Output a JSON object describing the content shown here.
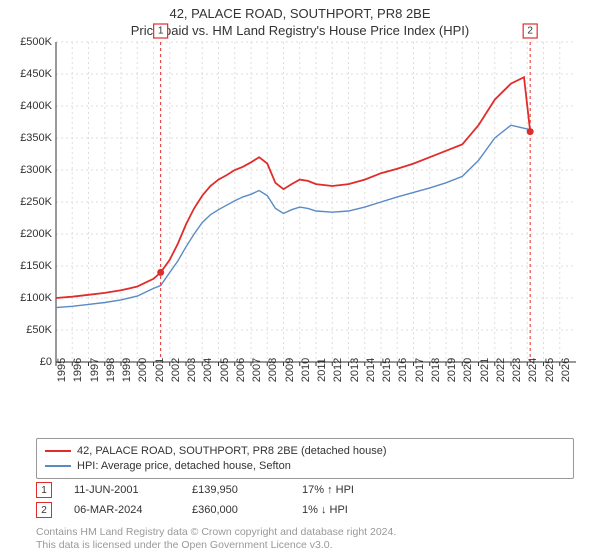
{
  "title_line1": "42, PALACE ROAD, SOUTHPORT, PR8 2BE",
  "title_line2": "Price paid vs. HM Land Registry's House Price Index (HPI)",
  "chart": {
    "type": "line",
    "background_color": "#ffffff",
    "grid_color": "#dddddd",
    "axis_color": "#333333",
    "x_domain": [
      1995,
      2027
    ],
    "y_domain": [
      0,
      500000
    ],
    "y_ticks": [
      0,
      50000,
      100000,
      150000,
      200000,
      250000,
      300000,
      350000,
      400000,
      450000,
      500000
    ],
    "y_tick_labels": [
      "£0",
      "£50K",
      "£100K",
      "£150K",
      "£200K",
      "£250K",
      "£300K",
      "£350K",
      "£400K",
      "£450K",
      "£500K"
    ],
    "x_ticks": [
      1995,
      1996,
      1997,
      1998,
      1999,
      2000,
      2001,
      2002,
      2003,
      2004,
      2005,
      2006,
      2007,
      2008,
      2009,
      2010,
      2011,
      2012,
      2013,
      2014,
      2015,
      2016,
      2017,
      2018,
      2019,
      2020,
      2021,
      2022,
      2023,
      2024,
      2025,
      2026
    ],
    "series": {
      "price_paid": {
        "label": "42, PALACE ROAD, SOUTHPORT, PR8 2BE (detached house)",
        "color": "#e12c2c",
        "width": 1.8,
        "points": [
          [
            1995.0,
            100000
          ],
          [
            1996.0,
            102000
          ],
          [
            1997.0,
            105000
          ],
          [
            1998.0,
            108000
          ],
          [
            1999.0,
            112000
          ],
          [
            2000.0,
            118000
          ],
          [
            2001.0,
            130000
          ],
          [
            2001.44,
            139950
          ],
          [
            2002.0,
            160000
          ],
          [
            2002.5,
            185000
          ],
          [
            2003.0,
            215000
          ],
          [
            2003.5,
            240000
          ],
          [
            2004.0,
            260000
          ],
          [
            2004.5,
            275000
          ],
          [
            2005.0,
            285000
          ],
          [
            2005.5,
            292000
          ],
          [
            2006.0,
            300000
          ],
          [
            2006.5,
            305000
          ],
          [
            2007.0,
            312000
          ],
          [
            2007.5,
            320000
          ],
          [
            2008.0,
            310000
          ],
          [
            2008.5,
            280000
          ],
          [
            2009.0,
            270000
          ],
          [
            2009.5,
            278000
          ],
          [
            2010.0,
            285000
          ],
          [
            2010.5,
            283000
          ],
          [
            2011.0,
            278000
          ],
          [
            2012.0,
            275000
          ],
          [
            2013.0,
            278000
          ],
          [
            2014.0,
            285000
          ],
          [
            2015.0,
            295000
          ],
          [
            2016.0,
            302000
          ],
          [
            2017.0,
            310000
          ],
          [
            2018.0,
            320000
          ],
          [
            2019.0,
            330000
          ],
          [
            2020.0,
            340000
          ],
          [
            2021.0,
            370000
          ],
          [
            2022.0,
            410000
          ],
          [
            2023.0,
            435000
          ],
          [
            2023.8,
            445000
          ],
          [
            2024.18,
            360000
          ]
        ]
      },
      "hpi": {
        "label": "HPI: Average price, detached house, Sefton",
        "color": "#5a8ac6",
        "width": 1.4,
        "points": [
          [
            1995.0,
            85000
          ],
          [
            1996.0,
            87000
          ],
          [
            1997.0,
            90000
          ],
          [
            1998.0,
            93000
          ],
          [
            1999.0,
            97000
          ],
          [
            2000.0,
            103000
          ],
          [
            2001.0,
            115000
          ],
          [
            2001.44,
            119500
          ],
          [
            2002.0,
            140000
          ],
          [
            2002.5,
            158000
          ],
          [
            2003.0,
            180000
          ],
          [
            2003.5,
            200000
          ],
          [
            2004.0,
            218000
          ],
          [
            2004.5,
            230000
          ],
          [
            2005.0,
            238000
          ],
          [
            2005.5,
            245000
          ],
          [
            2006.0,
            252000
          ],
          [
            2006.5,
            258000
          ],
          [
            2007.0,
            262000
          ],
          [
            2007.5,
            268000
          ],
          [
            2008.0,
            260000
          ],
          [
            2008.5,
            240000
          ],
          [
            2009.0,
            232000
          ],
          [
            2009.5,
            238000
          ],
          [
            2010.0,
            242000
          ],
          [
            2010.5,
            240000
          ],
          [
            2011.0,
            236000
          ],
          [
            2012.0,
            234000
          ],
          [
            2013.0,
            236000
          ],
          [
            2014.0,
            242000
          ],
          [
            2015.0,
            250000
          ],
          [
            2016.0,
            258000
          ],
          [
            2017.0,
            265000
          ],
          [
            2018.0,
            272000
          ],
          [
            2019.0,
            280000
          ],
          [
            2020.0,
            290000
          ],
          [
            2021.0,
            315000
          ],
          [
            2022.0,
            350000
          ],
          [
            2023.0,
            370000
          ],
          [
            2024.18,
            363000
          ]
        ]
      }
    },
    "markers": [
      {
        "num": "1",
        "x": 2001.44,
        "y": 139950
      },
      {
        "num": "2",
        "x": 2024.18,
        "y": 360000
      }
    ]
  },
  "legend": {
    "items": [
      {
        "color": "#e12c2c",
        "label": "42, PALACE ROAD, SOUTHPORT, PR8 2BE (detached house)"
      },
      {
        "color": "#5a8ac6",
        "label": "HPI: Average price, detached house, Sefton"
      }
    ]
  },
  "events": [
    {
      "num": "1",
      "date": "11-JUN-2001",
      "price": "£139,950",
      "hpi": "17% ↑ HPI"
    },
    {
      "num": "2",
      "date": "06-MAR-2024",
      "price": "£360,000",
      "hpi": "1% ↓ HPI"
    }
  ],
  "footer_line1": "Contains HM Land Registry data © Crown copyright and database right 2024.",
  "footer_line2": "This data is licensed under the Open Government Licence v3.0."
}
